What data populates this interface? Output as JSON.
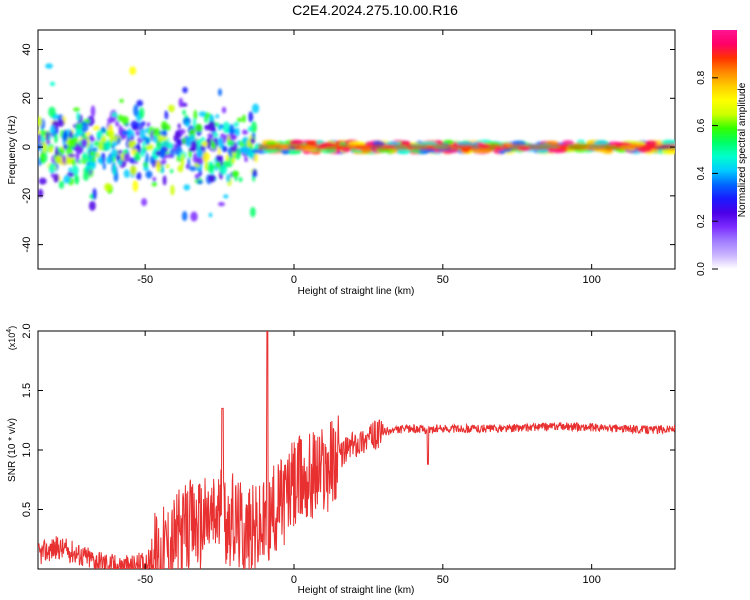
{
  "title": "C2E4.2024.275.10.00.R16",
  "colors": {
    "accent": "#e83030",
    "colormap": [
      "#ffffff",
      "#c9b3ff",
      "#a07cff",
      "#7c2cff",
      "#4b00e6",
      "#1a1aff",
      "#0066ff",
      "#00ccff",
      "#00ffcc",
      "#00ff66",
      "#33ff00",
      "#ccff00",
      "#ffff00",
      "#ffcc00",
      "#ff8800",
      "#ff3300",
      "#ff0066",
      "#ff1493"
    ]
  },
  "chart_data": [
    {
      "type": "heatmap",
      "xlabel": "Height of straight line (km)",
      "ylabel": "Frequency (Hz)",
      "xlim": [
        -86,
        128
      ],
      "ylim": [
        -50,
        48
      ],
      "xticks": [
        -50,
        0,
        50,
        100
      ],
      "yticks": [
        -40,
        -20,
        0,
        20,
        40
      ],
      "colorbar": {
        "label": "Normalized spectral amplitude",
        "range": [
          0,
          1
        ],
        "ticks": [
          "0.0",
          "0.2",
          "0.4",
          "0.6",
          "0.8"
        ]
      },
      "description_regions": [
        {
          "x": [
            -86,
            -12
          ],
          "freq_spread": 12,
          "amplitude": 0.35
        },
        {
          "x": [
            -12,
            128
          ],
          "freq_spread": 2,
          "amplitude": 0.75
        }
      ]
    },
    {
      "type": "line",
      "xlabel": "Height of straight line (km)",
      "ylabel": "SNR (10 * v/v)",
      "multiplier": "(x10",
      "multiplier_exp": "4",
      "multiplier_close": ")",
      "xlim": [
        -86,
        128
      ],
      "ylim": [
        0,
        2.0
      ],
      "xticks": [
        -50,
        0,
        50,
        100
      ],
      "yticks": [
        "0.5",
        "1.0",
        "1.5",
        "2.0"
      ],
      "series": [
        {
          "x": [
            -86,
            -80,
            -75,
            -70,
            -65,
            -60,
            -55,
            -50,
            -45,
            -40,
            -35,
            -30,
            -25,
            -20,
            -15,
            -10,
            -5,
            0,
            5,
            10,
            15,
            20,
            25,
            30,
            35,
            40,
            45,
            50,
            60,
            70,
            80,
            90,
            100,
            110,
            120,
            128
          ],
          "y": [
            0.12,
            0.18,
            0.15,
            0.1,
            0.06,
            0.03,
            0.02,
            0.05,
            0.12,
            0.25,
            0.35,
            0.4,
            0.45,
            0.4,
            0.3,
            0.35,
            0.55,
            0.7,
            0.78,
            0.85,
            0.95,
            1.05,
            1.1,
            1.15,
            1.17,
            1.18,
            1.17,
            1.18,
            1.18,
            1.18,
            1.19,
            1.2,
            1.19,
            1.18,
            1.17,
            1.18
          ]
        }
      ]
    }
  ]
}
